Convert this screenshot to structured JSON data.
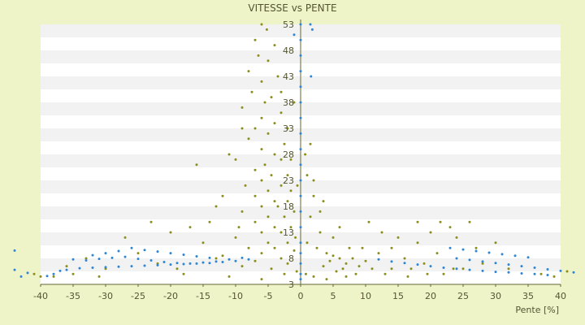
{
  "chart_data": {
    "type": "scatter",
    "title": "VITESSE vs PENTE",
    "xlabel": "Pente [%]",
    "ylabel": "",
    "xlim": [
      -40,
      40
    ],
    "ylim": [
      3,
      53
    ],
    "x_ticks": [
      "-40",
      "-35",
      "-30",
      "-25",
      "-20",
      "-15",
      "-10",
      "-5",
      "0",
      "5",
      "10",
      "15",
      "20",
      "25",
      "30",
      "35",
      "40"
    ],
    "y_ticks": [
      "3",
      "8",
      "13",
      "18",
      "23",
      "28",
      "33",
      "38",
      "43",
      "48",
      "53"
    ],
    "grid": "horizontal bands",
    "legend": "none",
    "series": [
      {
        "color": "#8a8f1a",
        "points": [
          [
            -6,
            53
          ],
          [
            -5.2,
            52
          ],
          [
            -7,
            50
          ],
          [
            -4,
            49
          ],
          [
            -6.5,
            47
          ],
          [
            -5,
            46
          ],
          [
            -8,
            44
          ],
          [
            -3.5,
            43
          ],
          [
            -6,
            42
          ],
          [
            -7.5,
            40
          ],
          [
            -4.5,
            39
          ],
          [
            -5.5,
            38
          ],
          [
            -9,
            37
          ],
          [
            -3,
            36
          ],
          [
            -6,
            35
          ],
          [
            -4,
            34
          ],
          [
            -7,
            33
          ],
          [
            -5,
            32
          ],
          [
            -8,
            31
          ],
          [
            -2.5,
            30
          ],
          [
            -6,
            29
          ],
          [
            -4,
            28
          ],
          [
            -10,
            27
          ],
          [
            -3,
            27
          ],
          [
            -5.5,
            26
          ],
          [
            -7,
            25
          ],
          [
            -2,
            24
          ],
          [
            -4.5,
            24
          ],
          [
            -6,
            23
          ],
          [
            -8.5,
            22
          ],
          [
            -3,
            22
          ],
          [
            -5,
            21
          ],
          [
            -1.5,
            21
          ],
          [
            -12,
            20
          ],
          [
            -7,
            20
          ],
          [
            -4,
            19
          ],
          [
            -2,
            19
          ],
          [
            -6,
            18
          ],
          [
            -3.5,
            18
          ],
          [
            -9,
            17
          ],
          [
            -1,
            17
          ],
          [
            -5,
            16
          ],
          [
            -2.5,
            16
          ],
          [
            -14,
            15
          ],
          [
            -7,
            15
          ],
          [
            -4,
            14
          ],
          [
            -1.5,
            14
          ],
          [
            -6,
            13
          ],
          [
            -3,
            13
          ],
          [
            -10,
            12
          ],
          [
            -0.8,
            12
          ],
          [
            -5,
            11
          ],
          [
            -2,
            11
          ],
          [
            -8,
            10
          ],
          [
            -4,
            10
          ],
          [
            -1,
            9.5
          ],
          [
            -6,
            9
          ],
          [
            -12,
            8.5
          ],
          [
            -3,
            8
          ],
          [
            -7,
            7.5
          ],
          [
            -2,
            7
          ],
          [
            -9,
            6.5
          ],
          [
            -4.5,
            6
          ],
          [
            -15,
            11
          ],
          [
            -17,
            14
          ],
          [
            -20,
            13
          ],
          [
            -23,
            15
          ],
          [
            -25,
            9
          ],
          [
            -19,
            6
          ],
          [
            -11,
            4.5
          ],
          [
            -6,
            4
          ],
          [
            -2.5,
            5
          ],
          [
            -30,
            6
          ],
          [
            -35,
            5
          ],
          [
            -38,
            4.5
          ],
          [
            -36,
            6.5
          ],
          [
            -16,
            26
          ],
          [
            -13,
            18
          ],
          [
            -9,
            33
          ],
          [
            -11,
            28
          ],
          [
            -2,
            33
          ],
          [
            -1.5,
            27
          ],
          [
            -0.5,
            22
          ],
          [
            -3,
            40
          ],
          [
            -1,
            38
          ],
          [
            1,
            24
          ],
          [
            2,
            20
          ],
          [
            1.5,
            16
          ],
          [
            3,
            13
          ],
          [
            2.5,
            10
          ],
          [
            4,
            9
          ],
          [
            5,
            8.5
          ],
          [
            6,
            8
          ],
          [
            4.5,
            7.5
          ],
          [
            7,
            7
          ],
          [
            8,
            8
          ],
          [
            3.5,
            6.5
          ],
          [
            6.5,
            6
          ],
          [
            9,
            6.5
          ],
          [
            5.5,
            5.5
          ],
          [
            8.5,
            5
          ],
          [
            10,
            7.5
          ],
          [
            11,
            6
          ],
          [
            12,
            9
          ],
          [
            13,
            5
          ],
          [
            14,
            10
          ],
          [
            15,
            12
          ],
          [
            16,
            8
          ],
          [
            17,
            6
          ],
          [
            18,
            11
          ],
          [
            19,
            7
          ],
          [
            20,
            13
          ],
          [
            21,
            9
          ],
          [
            22,
            5
          ],
          [
            23,
            14
          ],
          [
            24,
            12
          ],
          [
            25,
            6
          ],
          [
            26,
            15
          ],
          [
            27,
            10
          ],
          [
            28,
            7
          ],
          [
            30,
            11
          ],
          [
            32,
            6
          ],
          [
            2,
            4.5
          ],
          [
            4,
            4
          ],
          [
            7,
            4.5
          ],
          [
            1,
            11
          ],
          [
            3,
            17
          ],
          [
            5,
            12
          ],
          [
            7.5,
            10
          ],
          [
            9.5,
            10
          ],
          [
            1.5,
            30
          ],
          [
            2,
            23
          ],
          [
            0.7,
            28
          ],
          [
            3.5,
            19
          ],
          [
            6,
            14
          ],
          [
            10.5,
            15
          ],
          [
            12.5,
            13
          ],
          [
            14,
            6
          ],
          [
            16.5,
            4.5
          ],
          [
            18,
            15
          ],
          [
            19.5,
            5
          ],
          [
            21.5,
            15
          ],
          [
            23.5,
            6
          ],
          [
            -0.6,
            5.5
          ],
          [
            0.8,
            5
          ],
          [
            -22,
            7
          ],
          [
            -27,
            12
          ],
          [
            -31,
            4.5
          ],
          [
            -33,
            8
          ],
          [
            -40,
            4.5
          ],
          [
            -41,
            5
          ],
          [
            37,
            5
          ],
          [
            39,
            4.5
          ],
          [
            41,
            5.5
          ],
          [
            -9.5,
            14
          ],
          [
            -13,
            8
          ],
          [
            -18,
            5
          ]
        ]
      },
      {
        "color": "#2e86d8",
        "points": [
          [
            -35,
            7.8
          ],
          [
            -33,
            7.6
          ],
          [
            -31,
            7.9
          ],
          [
            -29,
            8.1
          ],
          [
            -27,
            8.3
          ],
          [
            -25,
            7.9
          ],
          [
            -23,
            7.6
          ],
          [
            -21,
            7.3
          ],
          [
            -19,
            7.1
          ],
          [
            -17,
            7.0
          ],
          [
            -15,
            7.2
          ],
          [
            -13,
            7.4
          ],
          [
            -11,
            7.8
          ],
          [
            -9,
            8.1
          ],
          [
            -34,
            6.1
          ],
          [
            -32,
            6.2
          ],
          [
            -30,
            6.3
          ],
          [
            -28,
            6.4
          ],
          [
            -26,
            6.5
          ],
          [
            -24,
            6.6
          ],
          [
            -22,
            6.7
          ],
          [
            -20,
            6.8
          ],
          [
            -18,
            6.9
          ],
          [
            -16,
            7.0
          ],
          [
            -14,
            7.1
          ],
          [
            -12,
            7.3
          ],
          [
            -10,
            7.5
          ],
          [
            -8,
            7.8
          ],
          [
            -36,
            5.8
          ],
          [
            -37,
            5.6
          ],
          [
            -38,
            5.0
          ],
          [
            -39,
            4.6
          ],
          [
            -42,
            5.2
          ],
          [
            -43,
            4.5
          ],
          [
            -44,
            9.5
          ],
          [
            -26,
            10.0
          ],
          [
            -24,
            9.6
          ],
          [
            -22,
            9.3
          ],
          [
            -20,
            9.0
          ],
          [
            -18,
            8.7
          ],
          [
            -16,
            8.4
          ],
          [
            -14,
            8.1
          ],
          [
            -30,
            9.0
          ],
          [
            -32,
            8.6
          ],
          [
            -28,
            9.4
          ],
          [
            0,
            53
          ],
          [
            0,
            50
          ],
          [
            0,
            47
          ],
          [
            0,
            44
          ],
          [
            0,
            41
          ],
          [
            0,
            38
          ],
          [
            0,
            35
          ],
          [
            0,
            32
          ],
          [
            0,
            29
          ],
          [
            0,
            26
          ],
          [
            0,
            23
          ],
          [
            0,
            20
          ],
          [
            0,
            17
          ],
          [
            0,
            14
          ],
          [
            0,
            11
          ],
          [
            0,
            9
          ],
          [
            0,
            7
          ],
          [
            0,
            5
          ],
          [
            0,
            4
          ],
          [
            1.5,
            53
          ],
          [
            1.8,
            52
          ],
          [
            1.6,
            43
          ],
          [
            -1,
            51
          ],
          [
            12,
            7.8
          ],
          [
            14,
            7.4
          ],
          [
            16,
            7.1
          ],
          [
            18,
            6.8
          ],
          [
            20,
            6.5
          ],
          [
            22,
            6.2
          ],
          [
            24,
            6.0
          ],
          [
            26,
            5.8
          ],
          [
            28,
            5.6
          ],
          [
            30,
            5.4
          ],
          [
            32,
            5.3
          ],
          [
            34,
            5.1
          ],
          [
            36,
            5.0
          ],
          [
            38,
            4.8
          ],
          [
            23,
            10
          ],
          [
            25,
            9.7
          ],
          [
            27,
            9.4
          ],
          [
            29,
            9.1
          ],
          [
            31,
            8.8
          ],
          [
            33,
            8.5
          ],
          [
            35,
            8.2
          ],
          [
            24,
            8.0
          ],
          [
            26,
            7.7
          ],
          [
            28,
            7.4
          ],
          [
            30,
            7.1
          ],
          [
            32,
            6.8
          ],
          [
            34,
            6.5
          ],
          [
            36,
            6.2
          ],
          [
            38,
            5.9
          ],
          [
            40,
            5.6
          ],
          [
            42,
            5.3
          ],
          [
            44,
            5.0
          ],
          [
            -44,
            5.8
          ]
        ]
      }
    ]
  }
}
